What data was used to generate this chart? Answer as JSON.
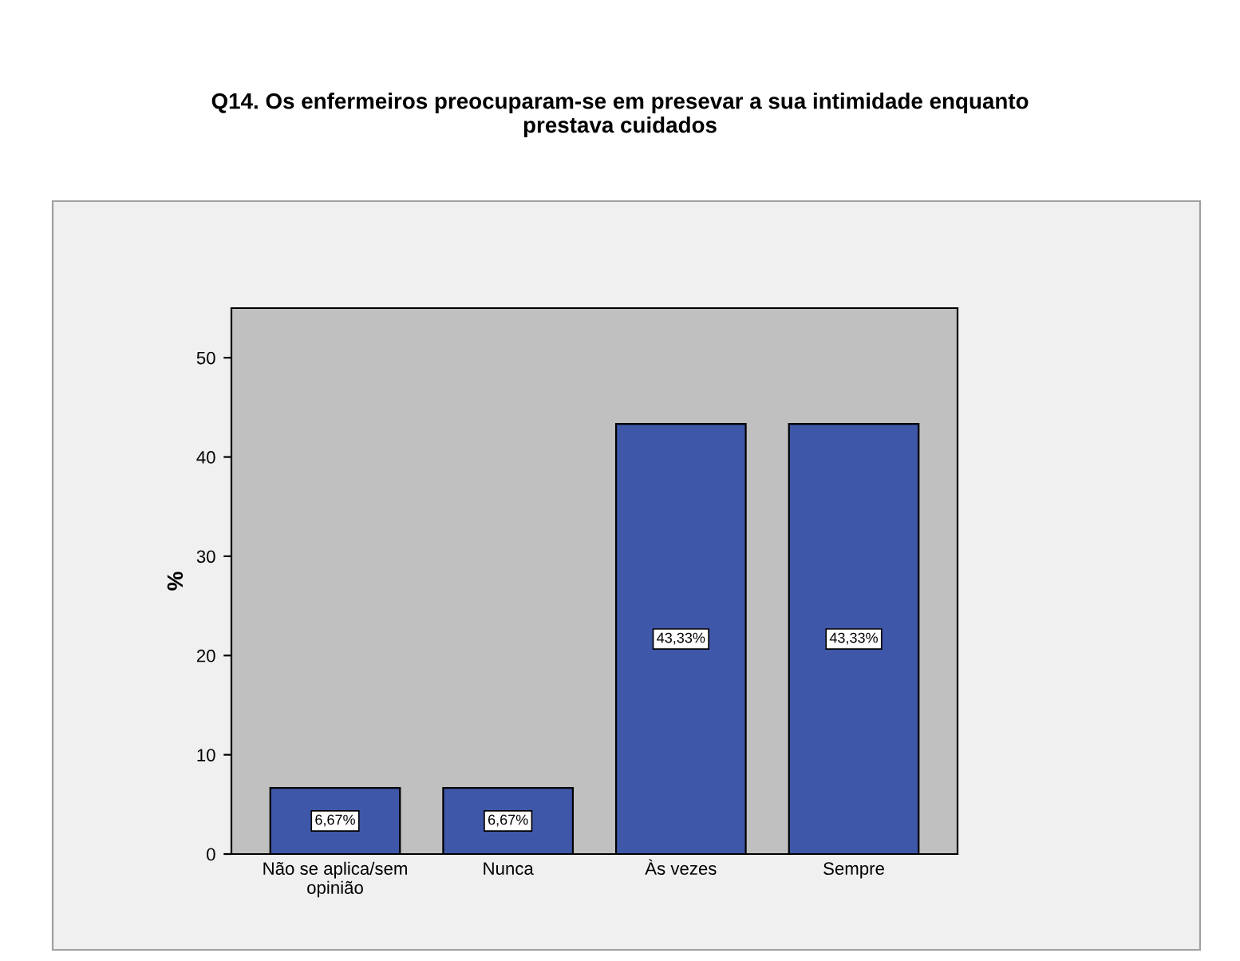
{
  "chart_data": {
    "type": "bar",
    "title": "Q14. Os enfermeiros preocuparam-se em presevar a sua intimidade enquanto\nprestava cuidados",
    "ylabel": "%",
    "categories": [
      "Não se aplica/sem\nopinião",
      "Nunca",
      "Às vezes",
      "Sempre"
    ],
    "values": [
      6.67,
      6.67,
      43.33,
      43.33
    ],
    "value_labels": [
      "6,67%",
      "6,67%",
      "43,33%",
      "43,33%"
    ],
    "color": "#3f57a8",
    "ylim": [
      0,
      55
    ],
    "yticks": [
      0,
      10,
      20,
      30,
      40,
      50
    ]
  }
}
